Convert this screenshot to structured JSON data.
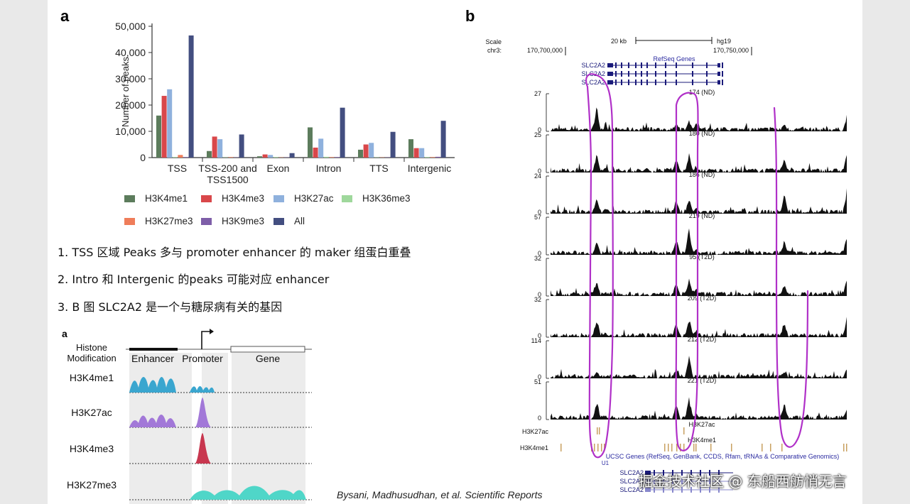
{
  "figure_a": {
    "letter": "a",
    "chart_data": {
      "type": "bar",
      "title": "",
      "xlabel": "",
      "ylabel": "Number of peaks",
      "ylim": [
        0,
        50000
      ],
      "yticks": [
        "0",
        "10,000",
        "20,000",
        "30,000",
        "40,000",
        "50,000"
      ],
      "ytick_values": [
        0,
        10000,
        20000,
        30000,
        40000,
        50000
      ],
      "categories": [
        "TSS",
        "TSS-200 and TSS1500",
        "Exon",
        "Intron",
        "TTS",
        "Intergenic"
      ],
      "category_lines": [
        [
          "TSS"
        ],
        [
          "TSS-200 and",
          "TSS1500"
        ],
        [
          "Exon"
        ],
        [
          "Intron"
        ],
        [
          "TTS"
        ],
        [
          "Intergenic"
        ]
      ],
      "series": [
        {
          "name": "H3K4me1",
          "color": "#5c7c5c",
          "values": [
            16000,
            2500,
            500,
            11500,
            3000,
            7000
          ]
        },
        {
          "name": "H3K4me3",
          "color": "#d9474a",
          "values": [
            23500,
            8000,
            1200,
            3800,
            5000,
            3600
          ]
        },
        {
          "name": "H3K27ac",
          "color": "#8fb1dd",
          "values": [
            26000,
            7000,
            1000,
            7200,
            5600,
            3600
          ]
        },
        {
          "name": "H3K36me3",
          "color": "#9fd89c",
          "values": [
            200,
            100,
            200,
            300,
            100,
            200
          ]
        },
        {
          "name": "H3K27me3",
          "color": "#ef7d5a",
          "values": [
            1000,
            200,
            100,
            200,
            100,
            200
          ]
        },
        {
          "name": "H3K9me3",
          "color": "#7e5ea8",
          "values": [
            200,
            100,
            100,
            200,
            100,
            300
          ]
        },
        {
          "name": "All",
          "color": "#434e80",
          "values": [
            46500,
            8800,
            1700,
            19000,
            9800,
            14000
          ]
        }
      ]
    }
  },
  "notes": [
    "1.  TSS 区域 Peaks 多与 promoter enhancer 的 maker 组蛋白重叠",
    "2.  Intro 和 Intergenic 的peaks 可能对应 enhancer",
    "3.  B 图 SLC2A2 是一个与糖尿病有关的基因"
  ],
  "schematic": {
    "letter": "a",
    "histone_header": "Histone\nModification",
    "regions": [
      "Enhancer",
      "Promoter",
      "Gene"
    ],
    "marks": [
      {
        "name": "H3K4me1",
        "color": "#3aa6cf"
      },
      {
        "name": "H3K27ac",
        "color": "#a278d8"
      },
      {
        "name": "H3K4me3",
        "color": "#c8374f"
      },
      {
        "name": "H3K27me3",
        "color": "#4fd6c8"
      }
    ]
  },
  "citation": "Bysani, Madhusudhan, et al. Scientific Reports",
  "figure_b": {
    "letter": "b",
    "scale_label": "Scale",
    "chr_label": "chr3:",
    "scale_bar": "20 kb",
    "assembly": "hg19",
    "coord_left": "170,700,000",
    "coord_right": "170,750,000",
    "refseq_title": "RefSeq Genes",
    "genes": [
      "SLC2A2",
      "SLC2A2",
      "SLC2A2"
    ],
    "tracks": [
      {
        "label": "174 (ND)",
        "max": "27"
      },
      {
        "label": "180 (ND)",
        "max": "25"
      },
      {
        "label": "186 (ND)",
        "max": "24"
      },
      {
        "label": "219 (ND)",
        "max": "57"
      },
      {
        "label": "95 (T2D)",
        "max": "32"
      },
      {
        "label": "209 (T2D)",
        "max": "32"
      },
      {
        "label": "212 (T2D)",
        "max": "114"
      },
      {
        "label": "221 (T2D)",
        "max": "51"
      }
    ],
    "zero_label": "0",
    "anno_h3k27ac_title": "H3K27ac",
    "anno_h3k27ac_label": "H3K27ac",
    "anno_h3k4me1_title": "H3K4me1",
    "anno_h3k4me1_label": "H3K4me1",
    "ucsc_title": "UCSC Genes (RefSeq, GenBank, CCDS, Rfam, tRNAs & Comparative Genomics)",
    "u1_label": "U1",
    "bottom_genes": [
      "SLC2A2",
      "SLC2A2",
      "SLC2A2"
    ],
    "circle_color": "#b030c8",
    "anno_color": "#c8a060"
  },
  "watermark": "掘金技术社区 @ 东船西舫悄无言"
}
